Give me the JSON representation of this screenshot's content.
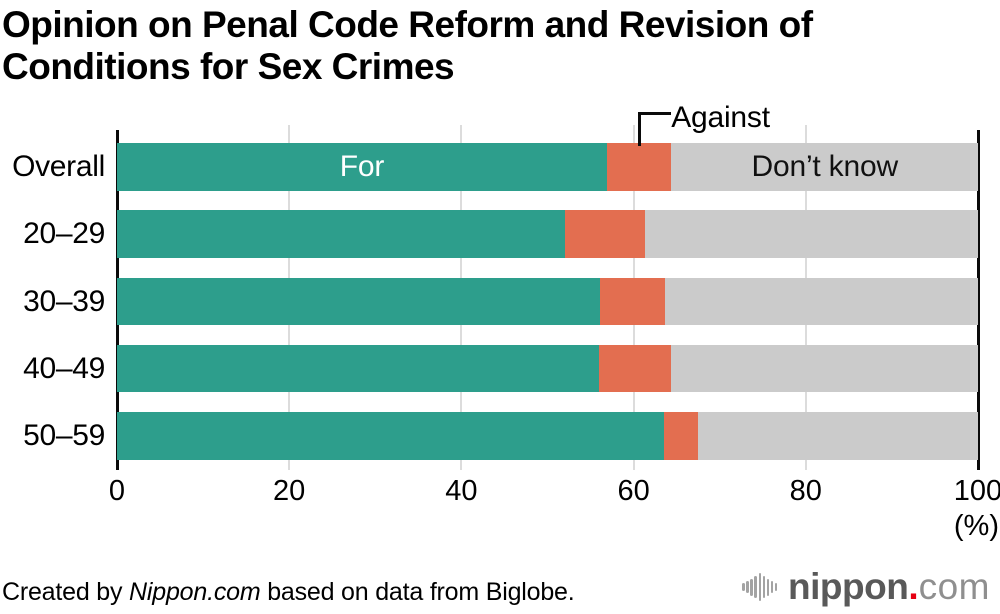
{
  "title_lines": [
    "Opinion on Penal Code Reform and Revision of",
    "Conditions for Sex Crimes"
  ],
  "chart_data": {
    "type": "bar",
    "stacked": true,
    "orientation": "horizontal",
    "title": "Opinion on Penal Code Reform and Revision of Conditions for Sex Crimes",
    "categories": [
      "Overall",
      "20–29",
      "30–39",
      "40–49",
      "50–59"
    ],
    "series": [
      {
        "name": "For",
        "color": "#2d9e8c",
        "values": [
          56.9,
          52.0,
          56.1,
          56.0,
          63.5
        ]
      },
      {
        "name": "Against",
        "color": "#e36e50",
        "values": [
          7.5,
          9.3,
          7.6,
          8.4,
          4.0
        ]
      },
      {
        "name": "Don’t know",
        "color": "#cbcbcb",
        "values": [
          35.6,
          38.7,
          36.3,
          35.6,
          32.5
        ]
      }
    ],
    "xlim": [
      0,
      100
    ],
    "x_ticks": [
      0,
      20,
      40,
      60,
      80,
      100
    ],
    "x_unit": "(%)",
    "grid": true,
    "legend": "labels-on-first-bar"
  },
  "colors": {
    "for": "#2d9e8c",
    "against": "#e36e50",
    "dont_know": "#cbcbcb",
    "gridline": "#dcdcdc",
    "axis": "#0a0a0a",
    "logo_dot": "#e60012"
  },
  "footer": {
    "credit_prefix": "Created by ",
    "credit_source": "Nippon.com",
    "credit_suffix": " based on data from Biglobe."
  },
  "logo": {
    "wordmark": "nippon",
    "dot": ".",
    "tld": "com"
  }
}
